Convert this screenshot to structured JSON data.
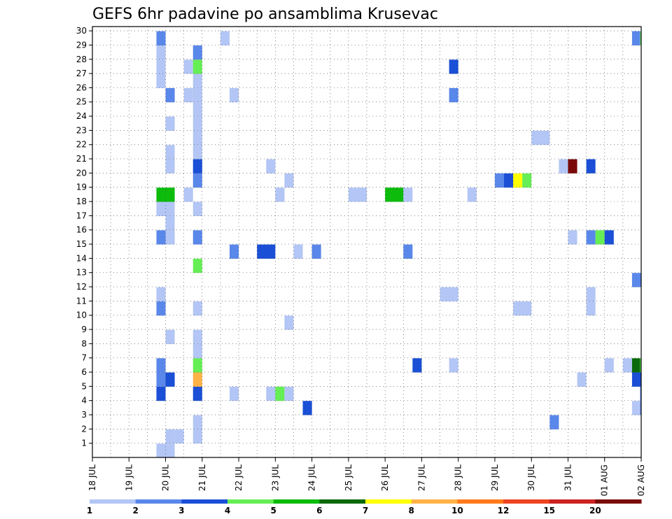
{
  "chart_data": {
    "type": "heatmap",
    "title": "GEFS 6hr padavine po ansamblima Krusevac",
    "xlabel": "",
    "ylabel": "",
    "y_tick_labels": [
      "1",
      "2",
      "3",
      "4",
      "5",
      "6",
      "7",
      "8",
      "9",
      "10",
      "11",
      "12",
      "13",
      "14",
      "15",
      "16",
      "17",
      "18",
      "19",
      "20",
      "21",
      "22",
      "23",
      "24",
      "25",
      "26",
      "27",
      "28",
      "29",
      "30"
    ],
    "x_tick_labels": [
      "18 JUL",
      "19 JUL",
      "20 JUL",
      "21 JUL",
      "22 JUL",
      "23 JUL",
      "24 JUL",
      "25 JUL",
      "26 JUL",
      "27 JUL",
      "28 JUL",
      "29 JUL",
      "30 JUL",
      "31 JUL",
      "01 AUG",
      "02 AUG"
    ],
    "x_range_days": [
      0,
      15
    ],
    "y_range": [
      0,
      30
    ],
    "grid": "dotted",
    "colorbar": {
      "labels": [
        "1",
        "2",
        "3",
        "4",
        "5",
        "6",
        "7",
        "8",
        "10",
        "12",
        "15",
        "20"
      ],
      "colors": [
        "#b3c6f5",
        "#5a87ea",
        "#1a4fd6",
        "#66ee55",
        "#0cbb0c",
        "#0a6a0a",
        "#ffff00",
        "#ffb347",
        "#ff7a1a",
        "#ee4422",
        "#cc2222",
        "#7a0a0a"
      ]
    },
    "cells": [
      {
        "m": 1,
        "x0": 2.0,
        "x1": 2.25,
        "c": 0
      },
      {
        "m": 1,
        "x0": 2.25,
        "x1": 2.5,
        "c": 0
      },
      {
        "m": 1,
        "x0": 2.75,
        "x1": 3.0,
        "c": 0
      },
      {
        "m": 2,
        "x0": 2.75,
        "x1": 3.0,
        "c": 0
      },
      {
        "m": 0,
        "x0": 1.75,
        "x1": 2.25,
        "c": 0
      },
      {
        "m": 2,
        "x0": 12.5,
        "x1": 12.75,
        "c": 1
      },
      {
        "m": 3,
        "x0": 5.75,
        "x1": 6.0,
        "c": 2
      },
      {
        "m": 3,
        "x0": 14.75,
        "x1": 14.97,
        "c": 0
      },
      {
        "m": 3,
        "x0": 14.97,
        "x1": 15.05,
        "c": 1
      },
      {
        "m": 4,
        "x0": 1.75,
        "x1": 2.0,
        "c": 2
      },
      {
        "m": 4,
        "x0": 2.75,
        "x1": 3.0,
        "c": 2
      },
      {
        "m": 4,
        "x0": 3.75,
        "x1": 4.0,
        "c": 0
      },
      {
        "m": 4,
        "x0": 4.75,
        "x1": 5.0,
        "c": 0
      },
      {
        "m": 4,
        "x0": 5.0,
        "x1": 5.25,
        "c": 3
      },
      {
        "m": 4,
        "x0": 5.25,
        "x1": 5.5,
        "c": 0
      },
      {
        "m": 4,
        "x0": 14.97,
        "x1": 15.05,
        "c": 1
      },
      {
        "m": 5,
        "x0": 1.75,
        "x1": 2.0,
        "c": 1
      },
      {
        "m": 5,
        "x0": 2.0,
        "x1": 2.25,
        "c": 2
      },
      {
        "m": 5,
        "x0": 2.75,
        "x1": 3.0,
        "c": 7
      },
      {
        "m": 5,
        "x0": 13.25,
        "x1": 13.5,
        "c": 0
      },
      {
        "m": 5,
        "x0": 14.75,
        "x1": 15.0,
        "c": 2
      },
      {
        "m": 6,
        "x0": 1.75,
        "x1": 2.0,
        "c": 1
      },
      {
        "m": 6,
        "x0": 2.75,
        "x1": 3.0,
        "c": 3
      },
      {
        "m": 6,
        "x0": 8.75,
        "x1": 9.0,
        "c": 2
      },
      {
        "m": 6,
        "x0": 9.75,
        "x1": 10.0,
        "c": 0
      },
      {
        "m": 6,
        "x0": 14.0,
        "x1": 14.25,
        "c": 0
      },
      {
        "m": 6,
        "x0": 14.5,
        "x1": 14.75,
        "c": 0
      },
      {
        "m": 6,
        "x0": 14.75,
        "x1": 15.0,
        "c": 5
      },
      {
        "m": 6,
        "x0": 14.97,
        "x1": 15.05,
        "c": 3
      },
      {
        "m": 7,
        "x0": 2.75,
        "x1": 3.0,
        "c": 0
      },
      {
        "m": 8,
        "x0": 2.0,
        "x1": 2.25,
        "c": 0
      },
      {
        "m": 8,
        "x0": 2.75,
        "x1": 3.0,
        "c": 0
      },
      {
        "m": 9,
        "x0": 5.25,
        "x1": 5.5,
        "c": 0
      },
      {
        "m": 10,
        "x0": 1.75,
        "x1": 2.0,
        "c": 1
      },
      {
        "m": 10,
        "x0": 2.75,
        "x1": 3.0,
        "c": 0
      },
      {
        "m": 10,
        "x0": 11.5,
        "x1": 12.0,
        "c": 0
      },
      {
        "m": 10,
        "x0": 13.5,
        "x1": 13.75,
        "c": 0
      },
      {
        "m": 11,
        "x0": 1.75,
        "x1": 2.0,
        "c": 0
      },
      {
        "m": 11,
        "x0": 9.5,
        "x1": 10.0,
        "c": 0
      },
      {
        "m": 11,
        "x0": 13.5,
        "x1": 13.75,
        "c": 0
      },
      {
        "m": 12,
        "x0": 14.75,
        "x1": 15.05,
        "c": 1
      },
      {
        "m": 13,
        "x0": 2.75,
        "x1": 3.0,
        "c": 3
      },
      {
        "m": 14,
        "x0": 3.75,
        "x1": 4.0,
        "c": 1
      },
      {
        "m": 14,
        "x0": 4.5,
        "x1": 5.0,
        "c": 2
      },
      {
        "m": 14,
        "x0": 5.5,
        "x1": 5.75,
        "c": 0
      },
      {
        "m": 14,
        "x0": 6.0,
        "x1": 6.25,
        "c": 1
      },
      {
        "m": 14,
        "x0": 8.5,
        "x1": 8.75,
        "c": 1
      },
      {
        "m": 15,
        "x0": 1.75,
        "x1": 2.0,
        "c": 1
      },
      {
        "m": 15,
        "x0": 2.0,
        "x1": 2.25,
        "c": 0
      },
      {
        "m": 15,
        "x0": 2.75,
        "x1": 3.0,
        "c": 1
      },
      {
        "m": 15,
        "x0": 13.0,
        "x1": 13.25,
        "c": 0
      },
      {
        "m": 15,
        "x0": 13.5,
        "x1": 13.75,
        "c": 1
      },
      {
        "m": 15,
        "x0": 13.75,
        "x1": 14.0,
        "c": 3
      },
      {
        "m": 15,
        "x0": 14.0,
        "x1": 14.25,
        "c": 2
      },
      {
        "m": 16,
        "x0": 2.0,
        "x1": 2.25,
        "c": 0
      },
      {
        "m": 17,
        "x0": 1.75,
        "x1": 2.25,
        "c": 0
      },
      {
        "m": 17,
        "x0": 2.75,
        "x1": 3.0,
        "c": 0
      },
      {
        "m": 18,
        "x0": 1.75,
        "x1": 2.25,
        "c": 4
      },
      {
        "m": 18,
        "x0": 2.5,
        "x1": 2.75,
        "c": 0
      },
      {
        "m": 18,
        "x0": 5.0,
        "x1": 5.25,
        "c": 0
      },
      {
        "m": 18,
        "x0": 7.0,
        "x1": 7.5,
        "c": 0
      },
      {
        "m": 18,
        "x0": 8.0,
        "x1": 8.5,
        "c": 4
      },
      {
        "m": 18,
        "x0": 8.5,
        "x1": 8.75,
        "c": 0
      },
      {
        "m": 18,
        "x0": 10.25,
        "x1": 10.5,
        "c": 0
      },
      {
        "m": 19,
        "x0": 2.75,
        "x1": 3.0,
        "c": 1
      },
      {
        "m": 19,
        "x0": 5.25,
        "x1": 5.5,
        "c": 0
      },
      {
        "m": 19,
        "x0": 11.0,
        "x1": 11.25,
        "c": 1
      },
      {
        "m": 19,
        "x0": 11.25,
        "x1": 11.5,
        "c": 2
      },
      {
        "m": 19,
        "x0": 11.5,
        "x1": 11.75,
        "c": 6
      },
      {
        "m": 19,
        "x0": 11.75,
        "x1": 12.0,
        "c": 3
      },
      {
        "m": 20,
        "x0": 2.0,
        "x1": 2.25,
        "c": 0
      },
      {
        "m": 20,
        "x0": 2.75,
        "x1": 3.0,
        "c": 2
      },
      {
        "m": 20,
        "x0": 4.75,
        "x1": 5.0,
        "c": 0
      },
      {
        "m": 20,
        "x0": 12.75,
        "x1": 13.0,
        "c": 0
      },
      {
        "m": 20,
        "x0": 13.0,
        "x1": 13.25,
        "c": 11
      },
      {
        "m": 20,
        "x0": 13.5,
        "x1": 13.75,
        "c": 2
      },
      {
        "m": 21,
        "x0": 2.0,
        "x1": 2.25,
        "c": 0
      },
      {
        "m": 21,
        "x0": 2.75,
        "x1": 3.0,
        "c": 0
      },
      {
        "m": 22,
        "x0": 2.75,
        "x1": 3.0,
        "c": 0
      },
      {
        "m": 22,
        "x0": 12.0,
        "x1": 12.5,
        "c": 0
      },
      {
        "m": 23,
        "x0": 2.0,
        "x1": 2.25,
        "c": 0
      },
      {
        "m": 23,
        "x0": 2.75,
        "x1": 3.0,
        "c": 0
      },
      {
        "m": 24,
        "x0": 2.75,
        "x1": 3.0,
        "c": 0
      },
      {
        "m": 25,
        "x0": 2.0,
        "x1": 2.25,
        "c": 1
      },
      {
        "m": 25,
        "x0": 2.5,
        "x1": 2.75,
        "c": 0
      },
      {
        "m": 25,
        "x0": 2.75,
        "x1": 3.0,
        "c": 0
      },
      {
        "m": 25,
        "x0": 3.75,
        "x1": 4.0,
        "c": 0
      },
      {
        "m": 25,
        "x0": 9.75,
        "x1": 10.0,
        "c": 1
      },
      {
        "m": 26,
        "x0": 1.75,
        "x1": 2.0,
        "c": 0
      },
      {
        "m": 26,
        "x0": 2.75,
        "x1": 3.0,
        "c": 0
      },
      {
        "m": 27,
        "x0": 1.75,
        "x1": 2.0,
        "c": 0
      },
      {
        "m": 27,
        "x0": 2.5,
        "x1": 2.75,
        "c": 0
      },
      {
        "m": 27,
        "x0": 2.75,
        "x1": 3.0,
        "c": 3
      },
      {
        "m": 27,
        "x0": 9.75,
        "x1": 10.0,
        "c": 2
      },
      {
        "m": 28,
        "x0": 1.75,
        "x1": 2.0,
        "c": 0
      },
      {
        "m": 28,
        "x0": 2.75,
        "x1": 3.0,
        "c": 1
      },
      {
        "m": 29,
        "x0": 1.75,
        "x1": 2.0,
        "c": 1
      },
      {
        "m": 29,
        "x0": 3.5,
        "x1": 3.75,
        "c": 0
      },
      {
        "m": 29,
        "x0": 14.75,
        "x1": 14.97,
        "c": 1
      },
      {
        "m": 29,
        "x0": 14.97,
        "x1": 15.05,
        "c": 3
      }
    ]
  }
}
